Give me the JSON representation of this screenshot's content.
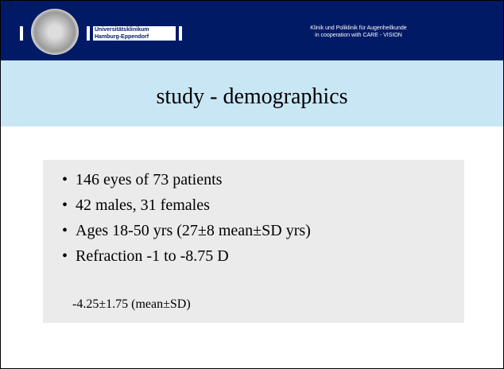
{
  "header": {
    "logo_text": [
      "Universitätsklinikum",
      "Hamburg-Eppendorf"
    ],
    "right_text": [
      "Klinik und Poliklinik für Augenheilkunde",
      "in cooperation with CARE - VISION"
    ]
  },
  "title": "study - demographics",
  "bullets": [
    "146 eyes of 73 patients",
    "42 males,  31  females",
    "Ages 18-50 yrs  (27±8 mean±SD yrs)",
    "Refraction -1 to -8.75 D"
  ],
  "sub_line": "-4.25±1.75 (mean±SD)"
}
